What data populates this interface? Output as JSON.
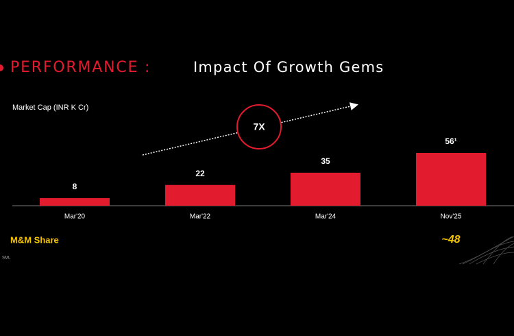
{
  "chart_data": {
    "type": "bar",
    "title_highlight": "PERFORMANCE :",
    "title": "Impact Of Growth Gems",
    "y_label": "Market Cap (INR K Cr)",
    "categories": [
      "Mar'20",
      "Mar'22",
      "Mar'24",
      "Nov'25"
    ],
    "values": [
      8,
      22,
      35,
      56
    ],
    "value_labels": [
      "8",
      "22",
      "35",
      "56¹"
    ],
    "color": "#e31b2e",
    "ylim": [
      0,
      100
    ],
    "annotation": "7X",
    "share_label": "M&M Share",
    "share_value": "~48",
    "footnote": "SML"
  }
}
